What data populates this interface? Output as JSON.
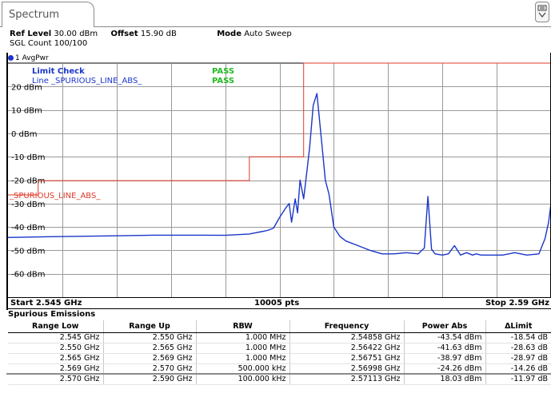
{
  "tab": {
    "label": "Spectrum"
  },
  "header": {
    "ref_level_label": "Ref Level",
    "ref_level_value": "30.00 dBm",
    "offset_label": "Offset",
    "offset_value": "15.90 dB",
    "mode_label": "Mode",
    "mode_value": "Auto Sweep",
    "sgl_count": "SGL Count 100/100"
  },
  "trace": {
    "label": "1 AvgPwr",
    "color": "#1a35c9"
  },
  "limit": {
    "check_label": "Limit Check",
    "check_result": "PASS",
    "line_label": "Line _SPURIOUS_LINE_ABS_",
    "line_result": "PASS",
    "line_marker_label": "_SPURIOUS_LINE_ABS_",
    "pass_color": "#22b822",
    "limit_color": "#e03a2a"
  },
  "chart_data": {
    "type": "line",
    "xlim": [
      2.545,
      2.59
    ],
    "x_unit": "GHz",
    "ylim": [
      -70,
      30
    ],
    "y_ticks": [
      "20 dBm",
      "10 dBm",
      "0 dBm",
      "-10 dBm",
      "-20 dBm",
      "-30 dBm",
      "-40 dBm",
      "-50 dBm",
      "-60 dBm"
    ],
    "y_tick_values": [
      20,
      10,
      0,
      -10,
      -20,
      -30,
      -40,
      -50,
      -60
    ],
    "grid": true,
    "limit_line": {
      "x": [
        2.545,
        2.5475,
        2.5475,
        2.565,
        2.565,
        2.5695,
        2.5695,
        2.59
      ],
      "y": [
        -26.3,
        -26.3,
        -20.2,
        -20.2,
        -10.0,
        -10.0,
        30,
        30
      ]
    },
    "series": [
      {
        "trace": "1 AvgPwr",
        "x": [
          2.545,
          2.548,
          2.551,
          2.554,
          2.557,
          2.56,
          2.563,
          2.565,
          2.5655,
          2.566,
          2.5665,
          2.567,
          2.5675,
          2.568,
          2.5683,
          2.5685,
          2.5688,
          2.569,
          2.5692,
          2.5695,
          2.5698,
          2.57,
          2.5703,
          2.5706,
          2.571,
          2.5713,
          2.5716,
          2.572,
          2.5725,
          2.573,
          2.574,
          2.575,
          2.576,
          2.577,
          2.578,
          2.579,
          2.5795,
          2.5798,
          2.5801,
          2.5804,
          2.581,
          2.5815,
          2.582,
          2.5825,
          2.583,
          2.5835,
          2.5838,
          2.5842,
          2.585,
          2.586,
          2.587,
          2.588,
          2.589,
          2.5895,
          2.5898,
          2.59
        ],
        "y": [
          -44.5,
          -44.2,
          -44.0,
          -43.8,
          -43.5,
          -43.5,
          -43.6,
          -43.0,
          -42.5,
          -42.0,
          -41.5,
          -40.5,
          -36.0,
          -32.0,
          -30.0,
          -38.0,
          -28.0,
          -34.0,
          -20.0,
          -28.0,
          -15.0,
          -6.0,
          12.0,
          17.0,
          -4.0,
          -20.0,
          -26.0,
          -40.0,
          -44.0,
          -46.0,
          -48.0,
          -50.0,
          -51.5,
          -51.5,
          -51.0,
          -51.5,
          -49.0,
          -27.0,
          -49.5,
          -51.5,
          -52.0,
          -51.5,
          -48.0,
          -52.0,
          -51.0,
          -52.0,
          -51.5,
          -52.0,
          -52.0,
          -52.0,
          -51.0,
          -52.0,
          -51.5,
          -45.0,
          -38.0,
          -30.0
        ]
      }
    ]
  },
  "bottom_bar": {
    "start": "Start 2.545 GHz",
    "points": "10005 pts",
    "stop": "Stop 2.59 GHz"
  },
  "table": {
    "title": "Spurious Emissions",
    "headers": [
      "Range Low",
      "Range Up",
      "RBW",
      "Frequency",
      "Power Abs",
      "ΔLimit"
    ],
    "rows": [
      [
        "2.545 GHz",
        "2.550 GHz",
        "1.000 MHz",
        "2.54858 GHz",
        "-43.54 dBm",
        "-18.54 dB"
      ],
      [
        "2.550 GHz",
        "2.565 GHz",
        "1.000 MHz",
        "2.56422 GHz",
        "-41.63 dBm",
        "-28.63 dB"
      ],
      [
        "2.565 GHz",
        "2.569 GHz",
        "1.000 MHz",
        "2.56751 GHz",
        "-38.97 dBm",
        "-28.97 dB"
      ],
      [
        "2.569 GHz",
        "2.570 GHz",
        "500.000 kHz",
        "2.56998 GHz",
        "-24.26 dBm",
        "-14.26 dB"
      ],
      [
        "2.570 GHz",
        "2.590 GHz",
        "100.000 kHz",
        "2.57113 GHz",
        "18.03 dBm",
        "-11.97 dB"
      ]
    ]
  }
}
